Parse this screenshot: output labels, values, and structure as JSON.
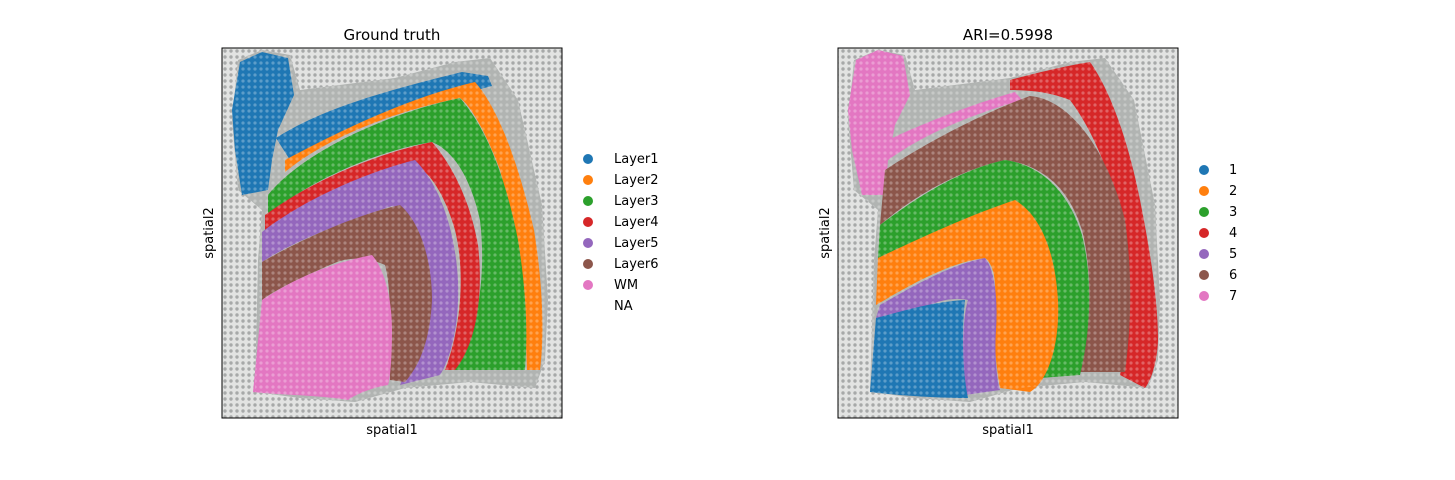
{
  "colors": {
    "c1": "#1f77b4",
    "c2": "#ff7f0e",
    "c3": "#2ca02c",
    "c4": "#d62728",
    "c5": "#9467bd",
    "c6": "#8c564b",
    "c7": "#e377c2",
    "tissue": "#b1b4b2",
    "background": "#e2e3e2"
  },
  "chart_data": [
    {
      "type": "scatter",
      "title": "Ground truth",
      "xlabel": "spatial1",
      "ylabel": "spatial2",
      "grid": false,
      "legend_position": "right",
      "legend": [
        {
          "label": "Layer1",
          "color": "#1f77b4"
        },
        {
          "label": "Layer2",
          "color": "#ff7f0e"
        },
        {
          "label": "Layer3",
          "color": "#2ca02c"
        },
        {
          "label": "Layer4",
          "color": "#d62728"
        },
        {
          "label": "Layer5",
          "color": "#9467bd"
        },
        {
          "label": "Layer6",
          "color": "#8c564b"
        },
        {
          "label": "WM",
          "color": "#e377c2"
        },
        {
          "label": "NA",
          "color": "none"
        }
      ]
    },
    {
      "type": "scatter",
      "title": "ARI=0.5998",
      "xlabel": "spatial1",
      "ylabel": "spatial2",
      "grid": false,
      "legend_position": "right",
      "legend": [
        {
          "label": "1",
          "color": "#1f77b4"
        },
        {
          "label": "2",
          "color": "#ff7f0e"
        },
        {
          "label": "3",
          "color": "#2ca02c"
        },
        {
          "label": "4",
          "color": "#d62728"
        },
        {
          "label": "5",
          "color": "#9467bd"
        },
        {
          "label": "6",
          "color": "#8c564b"
        },
        {
          "label": "7",
          "color": "#e377c2"
        }
      ]
    }
  ]
}
